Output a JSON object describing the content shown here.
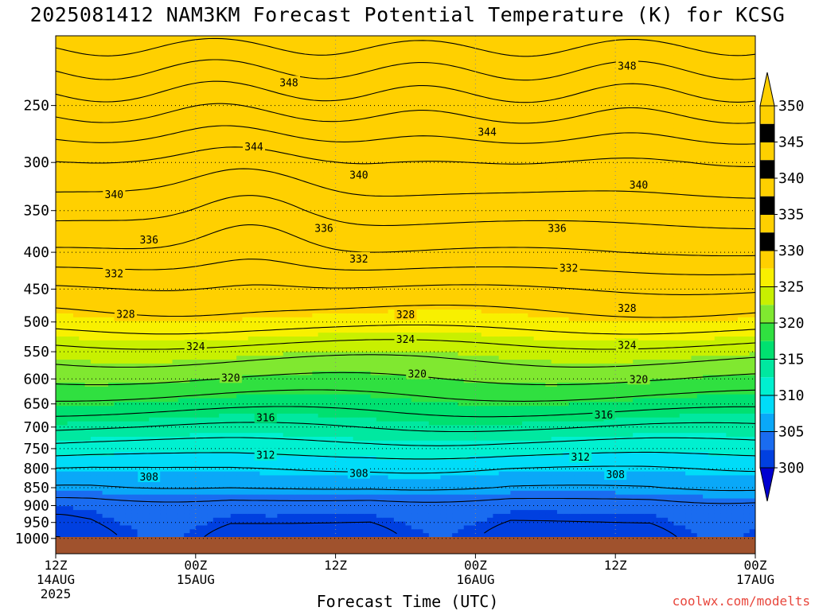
{
  "title": "2025081412 NAM3KM Forecast Potential Temperature (K) for KCSG",
  "footer_credit": "coolwx.com/modelts",
  "chart_data": {
    "type": "heatmap",
    "title": "2025081412 NAM3KM Forecast Potential Temperature (K) for KCSG",
    "xlabel": "Forecast Time (UTC)",
    "ylabel": "",
    "x_range_hours": [
      0,
      60
    ],
    "y_range": [
      1050,
      200
    ],
    "y_scale": "log",
    "y_ticks": [
      250,
      300,
      350,
      400,
      450,
      500,
      550,
      600,
      650,
      700,
      750,
      800,
      850,
      900,
      950,
      1000
    ],
    "x_ticks": [
      {
        "hour": 0,
        "lines": [
          "12Z",
          "14AUG",
          "2025"
        ]
      },
      {
        "hour": 12,
        "lines": [
          "00Z",
          "15AUG"
        ]
      },
      {
        "hour": 24,
        "lines": [
          "12Z"
        ]
      },
      {
        "hour": 36,
        "lines": [
          "00Z",
          "16AUG"
        ]
      },
      {
        "hour": 48,
        "lines": [
          "12Z"
        ]
      },
      {
        "hour": 60,
        "lines": [
          "00Z",
          "17AUG"
        ]
      }
    ],
    "grid": true,
    "colorbar": {
      "ticks": [
        300,
        305,
        310,
        315,
        320,
        325,
        330,
        335,
        340,
        345,
        350
      ],
      "colors": [
        "#0000d0",
        "#0040e0",
        "#1a6cf0",
        "#0aa8f8",
        "#00dcf8",
        "#00f0d0",
        "#00e8a0",
        "#00e070",
        "#30e040",
        "#80e830",
        "#c8f000",
        "#f8f000",
        "#ffd000"
      ]
    },
    "surface_color": "#a0522d",
    "profile_levels_hpa": [
      1000,
      900,
      850,
      800,
      750,
      700,
      650,
      600,
      550,
      500,
      450,
      400,
      350,
      300,
      250,
      200
    ],
    "profile_theta_k": [
      301,
      303,
      306,
      308,
      311,
      314,
      317,
      320,
      323,
      327,
      330,
      334,
      337,
      340,
      345,
      351
    ],
    "contour_labels": [
      {
        "value": 348,
        "hour": 20,
        "p": 232
      },
      {
        "value": 348,
        "hour": 49,
        "p": 220
      },
      {
        "value": 344,
        "hour": 17,
        "p": 285
      },
      {
        "value": 344,
        "hour": 37,
        "p": 272
      },
      {
        "value": 340,
        "hour": 5,
        "p": 332
      },
      {
        "value": 340,
        "hour": 26,
        "p": 312
      },
      {
        "value": 340,
        "hour": 50,
        "p": 322
      },
      {
        "value": 336,
        "hour": 8,
        "p": 384
      },
      {
        "value": 336,
        "hour": 23,
        "p": 370
      },
      {
        "value": 336,
        "hour": 43,
        "p": 370
      },
      {
        "value": 332,
        "hour": 5,
        "p": 428
      },
      {
        "value": 332,
        "hour": 26,
        "p": 408
      },
      {
        "value": 332,
        "hour": 44,
        "p": 420
      },
      {
        "value": 328,
        "hour": 6,
        "p": 487
      },
      {
        "value": 328,
        "hour": 30,
        "p": 488
      },
      {
        "value": 328,
        "hour": 49,
        "p": 478
      },
      {
        "value": 324,
        "hour": 12,
        "p": 540
      },
      {
        "value": 324,
        "hour": 30,
        "p": 528
      },
      {
        "value": 324,
        "hour": 49,
        "p": 538
      },
      {
        "value": 320,
        "hour": 15,
        "p": 597
      },
      {
        "value": 320,
        "hour": 31,
        "p": 590
      },
      {
        "value": 320,
        "hour": 50,
        "p": 600
      },
      {
        "value": 316,
        "hour": 18,
        "p": 678
      },
      {
        "value": 316,
        "hour": 47,
        "p": 672
      },
      {
        "value": 312,
        "hour": 18,
        "p": 765
      },
      {
        "value": 312,
        "hour": 45,
        "p": 770
      },
      {
        "value": 308,
        "hour": 8,
        "p": 820
      },
      {
        "value": 308,
        "hour": 26,
        "p": 811
      },
      {
        "value": 308,
        "hour": 48,
        "p": 814
      }
    ]
  }
}
